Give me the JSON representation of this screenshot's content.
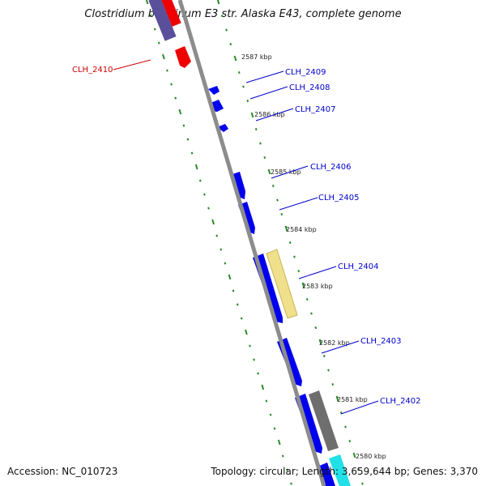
{
  "title": "Clostridium botulinum E3 str. Alaska E43, complete genome",
  "accession_text": "Accession: NC_010723",
  "topology_text": "Topology: circular; Length: 3,659,644 bp; Genes: 3,370",
  "colors": {
    "backbone": "#8c8c8c",
    "forward_cds": "#0000ee",
    "reverse_cds": "#ee0000",
    "other_feature_purple": "#5a4f9a",
    "rna_feature": "#f0e08c",
    "grey_feature": "#6e6e6e",
    "cyan_feature": "#22e0e8",
    "tick": "#2a8a2a",
    "label_forward": "#0000cc",
    "label_reverse": "#cc0000"
  },
  "scale_labels": [
    "2587 kbp",
    "2586 kbp",
    "2585 kbp",
    "2584 kbp",
    "2583 kbp",
    "2582 kbp",
    "2581 kbp",
    "2580 kbp"
  ],
  "gene_labels": [
    {
      "name": "CLH_2410",
      "strand": "reverse"
    },
    {
      "name": "CLH_2409",
      "strand": "forward"
    },
    {
      "name": "CLH_2408",
      "strand": "forward"
    },
    {
      "name": "CLH_2407",
      "strand": "forward"
    },
    {
      "name": "CLH_2406",
      "strand": "forward"
    },
    {
      "name": "CLH_2405",
      "strand": "forward"
    },
    {
      "name": "CLH_2404",
      "strand": "forward"
    },
    {
      "name": "CLH_2403",
      "strand": "forward"
    },
    {
      "name": "CLH_2402",
      "strand": "forward"
    }
  ]
}
